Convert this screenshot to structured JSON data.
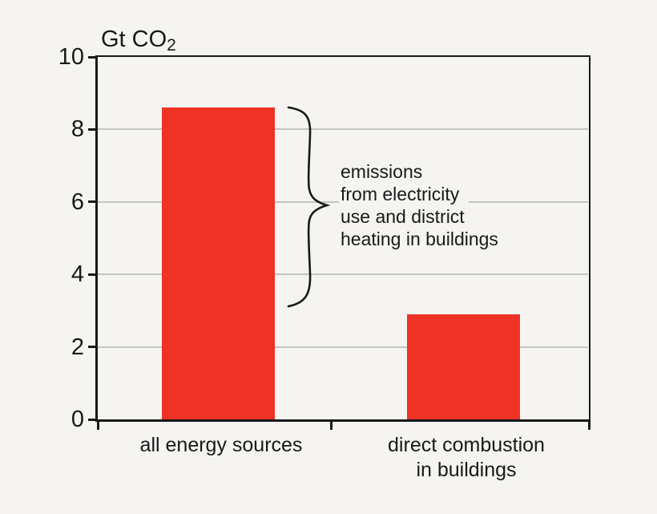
{
  "chart_data": {
    "type": "bar",
    "title_unit": {
      "main": "Gt CO",
      "sub": "2"
    },
    "categories": [
      "all energy sources",
      "direct combustion\nin buildings"
    ],
    "values": [
      8.6,
      2.9
    ],
    "ylim": [
      0,
      10
    ],
    "yticks": [
      0,
      2,
      4,
      6,
      8,
      10
    ],
    "grid": true,
    "legend": "none",
    "annotation": {
      "lines": [
        "emissions",
        "from electricity",
        "use and district",
        "heating in buildings"
      ],
      "brace_span_values": [
        8.6,
        3.0
      ]
    },
    "colors": {
      "bar": "#ee3326",
      "background": "#f5f4f1",
      "gridline": "#c3c5c3",
      "axis": "#191919",
      "text": "#191919"
    }
  }
}
